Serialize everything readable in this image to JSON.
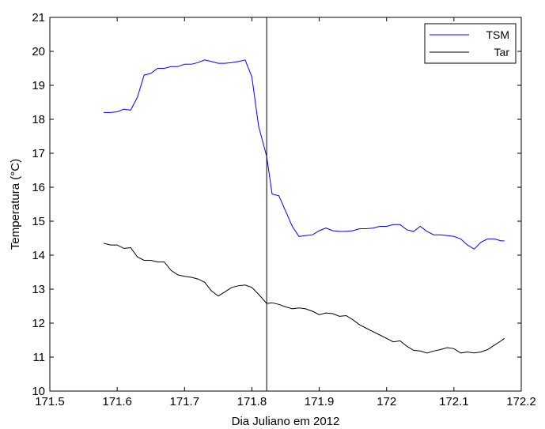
{
  "chart_data": {
    "type": "line",
    "title": "",
    "xlabel": "Dia Juliano em 2012",
    "ylabel": "Temperatura (°C)",
    "xlim": [
      171.5,
      172.2
    ],
    "ylim": [
      10,
      21
    ],
    "xticks": [
      171.5,
      171.6,
      171.7,
      171.8,
      171.9,
      172,
      172.1,
      172.2
    ],
    "xtick_labels": [
      "171.5",
      "171.6",
      "171.7",
      "171.8",
      "171.9",
      "172",
      "172.1",
      "172.2"
    ],
    "yticks": [
      10,
      11,
      12,
      13,
      14,
      15,
      16,
      17,
      18,
      19,
      20,
      21
    ],
    "ytick_labels": [
      "10",
      "11",
      "12",
      "13",
      "14",
      "15",
      "16",
      "17",
      "18",
      "19",
      "20",
      "21"
    ],
    "grid": false,
    "legend_position": "top-right",
    "vline_x": 171.822,
    "series": [
      {
        "name": "TSM",
        "color": "#0000ff",
        "x": [
          171.58,
          171.59,
          171.6,
          171.61,
          171.62,
          171.63,
          171.64,
          171.65,
          171.66,
          171.67,
          171.68,
          171.69,
          171.7,
          171.71,
          171.72,
          171.73,
          171.74,
          171.75,
          171.76,
          171.77,
          171.78,
          171.79,
          171.8,
          171.81,
          171.822,
          171.83,
          171.84,
          171.85,
          171.86,
          171.87,
          171.88,
          171.89,
          171.9,
          171.91,
          171.92,
          171.93,
          171.94,
          171.95,
          171.96,
          171.97,
          171.98,
          171.99,
          172.0,
          172.01,
          172.02,
          172.03,
          172.04,
          172.05,
          172.06,
          172.07,
          172.08,
          172.09,
          172.1,
          172.11,
          172.12,
          172.13,
          172.14,
          172.15,
          172.16,
          172.17,
          172.175
        ],
        "y": [
          18.2,
          18.2,
          18.22,
          18.3,
          18.27,
          18.65,
          19.3,
          19.35,
          19.5,
          19.5,
          19.55,
          19.55,
          19.62,
          19.62,
          19.67,
          19.75,
          19.7,
          19.65,
          19.65,
          19.67,
          19.7,
          19.75,
          19.25,
          17.8,
          16.9,
          15.8,
          15.75,
          15.3,
          14.85,
          14.55,
          14.58,
          14.6,
          14.72,
          14.8,
          14.72,
          14.7,
          14.7,
          14.72,
          14.78,
          14.78,
          14.8,
          14.85,
          14.85,
          14.9,
          14.9,
          14.75,
          14.7,
          14.85,
          14.7,
          14.6,
          14.6,
          14.58,
          14.55,
          14.48,
          14.3,
          14.18,
          14.38,
          14.48,
          14.48,
          14.42,
          14.42
        ]
      },
      {
        "name": "Tar",
        "color": "#000000",
        "x": [
          171.58,
          171.59,
          171.6,
          171.61,
          171.62,
          171.63,
          171.64,
          171.65,
          171.66,
          171.67,
          171.68,
          171.69,
          171.7,
          171.71,
          171.72,
          171.73,
          171.74,
          171.75,
          171.76,
          171.77,
          171.78,
          171.79,
          171.8,
          171.81,
          171.822,
          171.83,
          171.84,
          171.85,
          171.86,
          171.87,
          171.88,
          171.89,
          171.9,
          171.91,
          171.92,
          171.93,
          171.94,
          171.95,
          171.96,
          171.97,
          171.98,
          171.99,
          172.0,
          172.01,
          172.02,
          172.03,
          172.04,
          172.05,
          172.06,
          172.07,
          172.08,
          172.09,
          172.1,
          172.11,
          172.12,
          172.13,
          172.14,
          172.15,
          172.16,
          172.17,
          172.175
        ],
        "y": [
          14.35,
          14.3,
          14.3,
          14.2,
          14.22,
          13.95,
          13.85,
          13.85,
          13.8,
          13.8,
          13.55,
          13.42,
          13.38,
          13.35,
          13.3,
          13.2,
          12.95,
          12.8,
          12.92,
          13.05,
          13.1,
          13.12,
          13.05,
          12.85,
          12.58,
          12.6,
          12.55,
          12.48,
          12.42,
          12.45,
          12.42,
          12.35,
          12.25,
          12.3,
          12.28,
          12.2,
          12.22,
          12.1,
          11.95,
          11.85,
          11.75,
          11.65,
          11.55,
          11.45,
          11.48,
          11.32,
          11.2,
          11.18,
          11.12,
          11.18,
          11.22,
          11.28,
          11.25,
          11.12,
          11.15,
          11.12,
          11.15,
          11.22,
          11.35,
          11.48,
          11.55
        ]
      }
    ]
  }
}
